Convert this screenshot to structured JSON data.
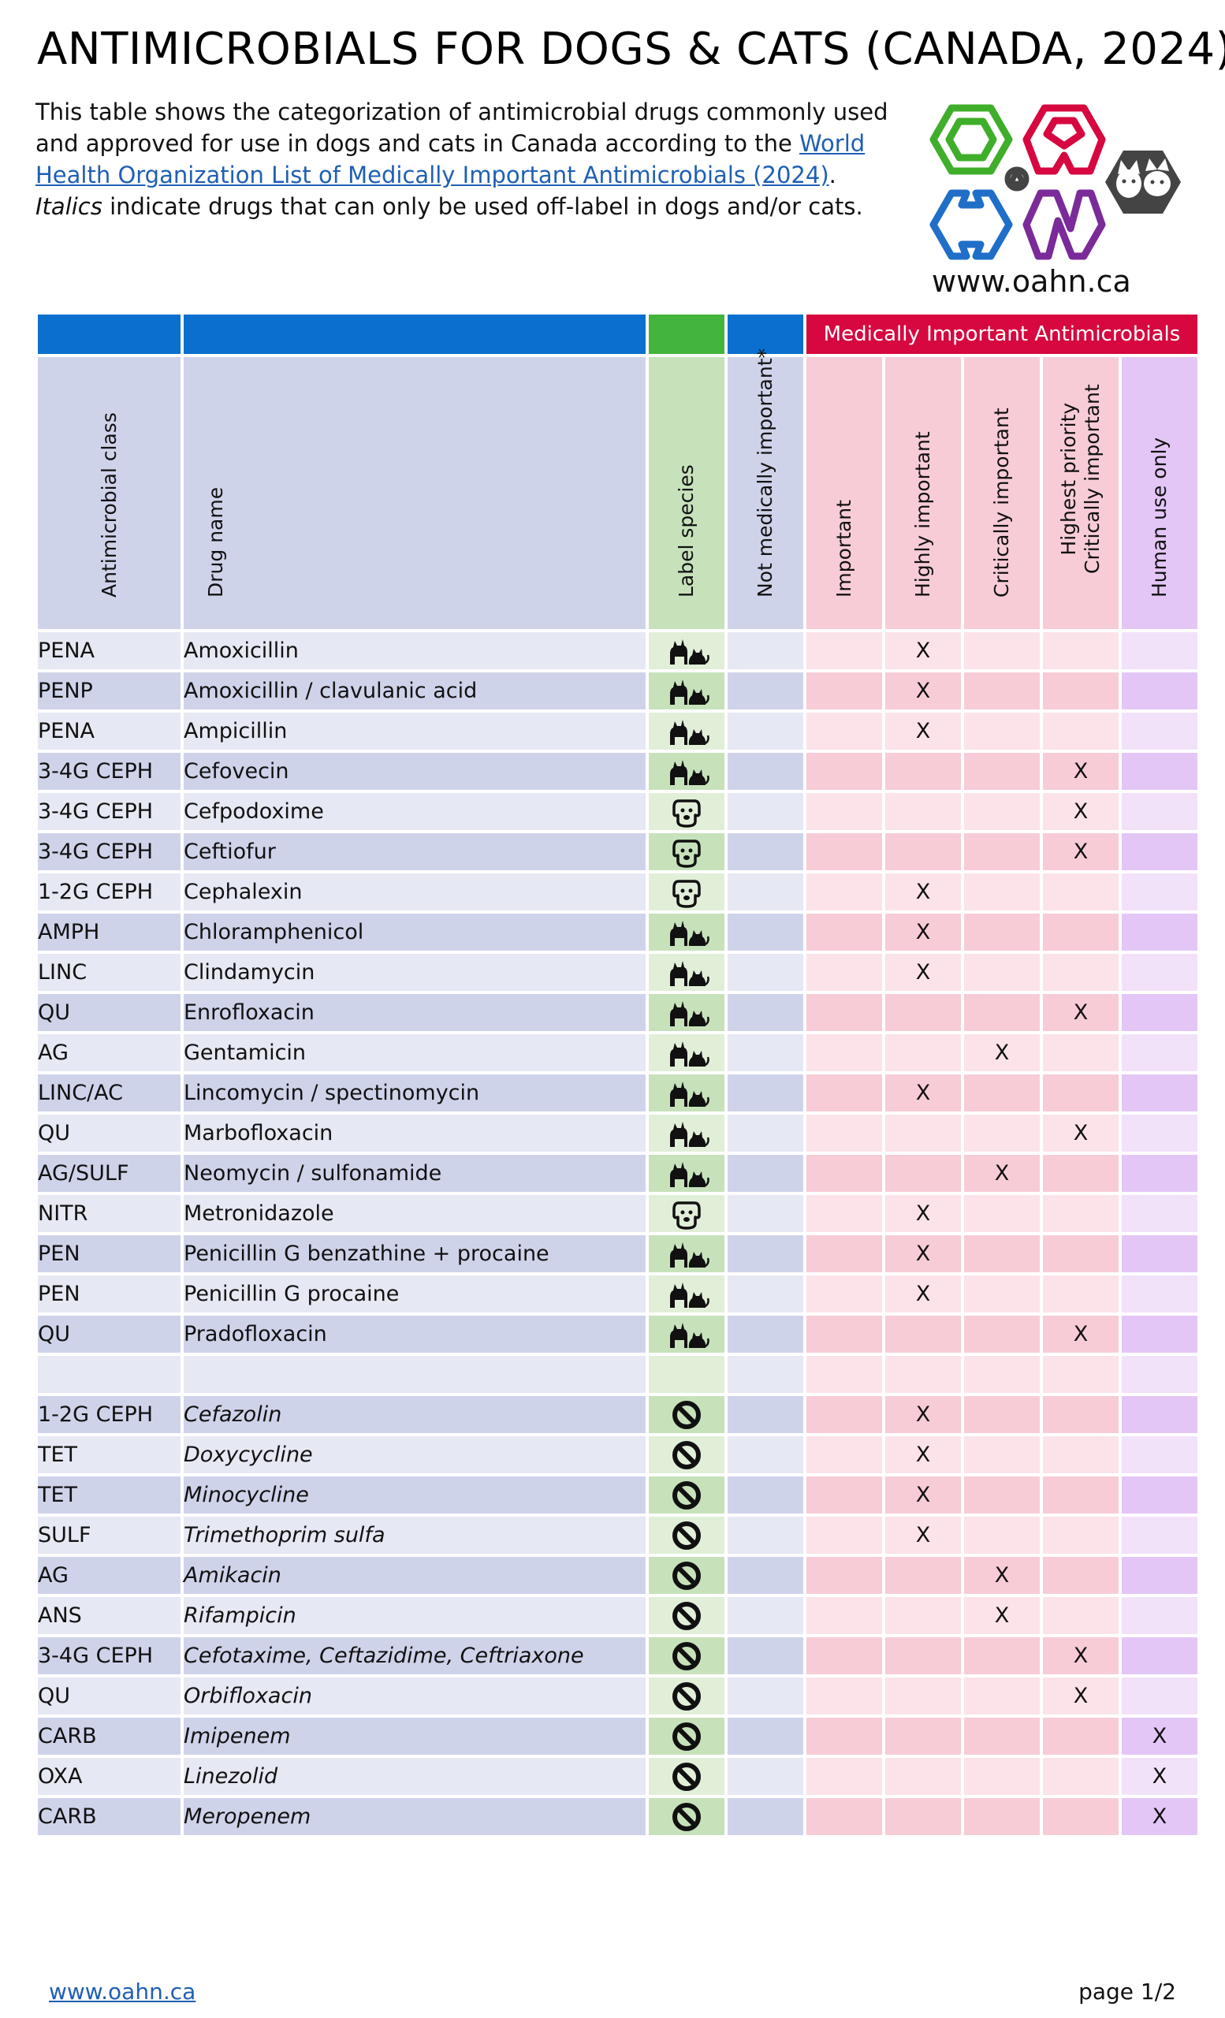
{
  "header": {
    "title": "ANTIMICROBIALS FOR DOGS & CATS (CANADA, 2024)",
    "intro_before_link": "This table shows the categorization of antimicrobial drugs commonly used and approved for use in dogs and cats in Canada according to the ",
    "intro_link": "World Health Organization List of Medically Important Antimicrobials (2024)",
    "intro_after_link": ". ",
    "intro_italic": "Italics",
    "intro_end": " indicate drugs that can only be used off-label in dogs and/or cats."
  },
  "logo": {
    "url_text": "www.oahn.ca",
    "colors": {
      "green": "#3fae2a",
      "red": "#d6083f",
      "blue": "#1f6fc9",
      "purple": "#7a2a99",
      "gray": "#444444"
    }
  },
  "table": {
    "band_label": "Medically Important Antimicrobials",
    "columns": {
      "class": "Antimicrobial class",
      "drug": "Drug name",
      "species": "Label species",
      "not_mi": "Not medically important*",
      "important": "Important",
      "highly": "Highly important",
      "critically": "Critically important",
      "highest_line1": "Highest priority",
      "highest_line2": "Critically important",
      "human": "Human use only"
    },
    "rows": [
      {
        "cls": "PENA",
        "drug": "Amoxicillin",
        "species": "dog-cat-icon",
        "cat": "highly",
        "italic": false
      },
      {
        "cls": "PENP",
        "drug": "Amoxicillin / clavulanic acid",
        "species": "dog-cat-icon",
        "cat": "highly",
        "italic": false
      },
      {
        "cls": "PENA",
        "drug": "Ampicillin",
        "species": "dog-cat-icon",
        "cat": "highly",
        "italic": false
      },
      {
        "cls": "3-4G CEPH",
        "drug": "Cefovecin",
        "species": "dog-cat-icon",
        "cat": "highest",
        "italic": false
      },
      {
        "cls": "3-4G CEPH",
        "drug": "Cefpodoxime",
        "species": "dog-icon",
        "cat": "highest",
        "italic": false
      },
      {
        "cls": "3-4G CEPH",
        "drug": "Ceftiofur",
        "species": "dog-icon",
        "cat": "highest",
        "italic": false
      },
      {
        "cls": "1-2G CEPH",
        "drug": "Cephalexin",
        "species": "dog-icon",
        "cat": "highly",
        "italic": false
      },
      {
        "cls": "AMPH",
        "drug": "Chloramphenicol",
        "species": "dog-cat-icon",
        "cat": "highly",
        "italic": false
      },
      {
        "cls": "LINC",
        "drug": "Clindamycin",
        "species": "dog-cat-icon",
        "cat": "highly",
        "italic": false
      },
      {
        "cls": "QU",
        "drug": "Enrofloxacin",
        "species": "dog-cat-icon",
        "cat": "highest",
        "italic": false
      },
      {
        "cls": "AG",
        "drug": "Gentamicin",
        "species": "dog-cat-icon",
        "cat": "critically",
        "italic": false
      },
      {
        "cls": "LINC/AC",
        "drug": "Lincomycin / spectinomycin",
        "species": "dog-cat-icon",
        "cat": "highly",
        "italic": false
      },
      {
        "cls": "QU",
        "drug": "Marbofloxacin",
        "species": "dog-cat-icon",
        "cat": "highest",
        "italic": false
      },
      {
        "cls": "AG/SULF",
        "drug": "Neomycin / sulfonamide",
        "species": "dog-cat-icon",
        "cat": "critically",
        "italic": false
      },
      {
        "cls": "NITR",
        "drug": "Metronidazole",
        "species": "dog-icon",
        "cat": "highly",
        "italic": false
      },
      {
        "cls": "PEN",
        "drug": "Penicillin G benzathine + procaine",
        "species": "dog-cat-icon",
        "cat": "highly",
        "italic": false
      },
      {
        "cls": "PEN",
        "drug": "Penicillin G procaine",
        "species": "dog-cat-icon",
        "cat": "highly",
        "italic": false
      },
      {
        "cls": "QU",
        "drug": "Pradofloxacin",
        "species": "dog-cat-icon",
        "cat": "highest",
        "italic": false
      },
      {
        "cls": "",
        "drug": "",
        "species": "",
        "cat": "",
        "italic": false
      },
      {
        "cls": "1-2G CEPH",
        "drug": "Cefazolin",
        "species": "prohibited-icon",
        "cat": "highly",
        "italic": true
      },
      {
        "cls": "TET",
        "drug": "Doxycycline",
        "species": "prohibited-icon",
        "cat": "highly",
        "italic": true
      },
      {
        "cls": "TET",
        "drug": "Minocycline",
        "species": "prohibited-icon",
        "cat": "highly",
        "italic": true
      },
      {
        "cls": "SULF",
        "drug": "Trimethoprim sulfa",
        "species": "prohibited-icon",
        "cat": "highly",
        "italic": true
      },
      {
        "cls": "AG",
        "drug": "Amikacin",
        "species": "prohibited-icon",
        "cat": "critically",
        "italic": true
      },
      {
        "cls": "ANS",
        "drug": "Rifampicin",
        "species": "prohibited-icon",
        "cat": "critically",
        "italic": true
      },
      {
        "cls": "3-4G CEPH",
        "drug": "Cefotaxime, Ceftazidime, Ceftriaxone",
        "species": "prohibited-icon",
        "cat": "highest",
        "italic": true
      },
      {
        "cls": "QU",
        "drug": "Orbifloxacin",
        "species": "prohibited-icon",
        "cat": "highest",
        "italic": true
      },
      {
        "cls": "CARB",
        "drug": "Imipenem",
        "species": "prohibited-icon",
        "cat": "human",
        "italic": true
      },
      {
        "cls": "OXA",
        "drug": "Linezolid",
        "species": "prohibited-icon",
        "cat": "human",
        "italic": true
      },
      {
        "cls": "CARB",
        "drug": "Meropenem",
        "species": "prohibited-icon",
        "cat": "human",
        "italic": true
      }
    ],
    "mark": "X"
  },
  "footer": {
    "link": "www.oahn.ca",
    "page": "page 1/2"
  }
}
